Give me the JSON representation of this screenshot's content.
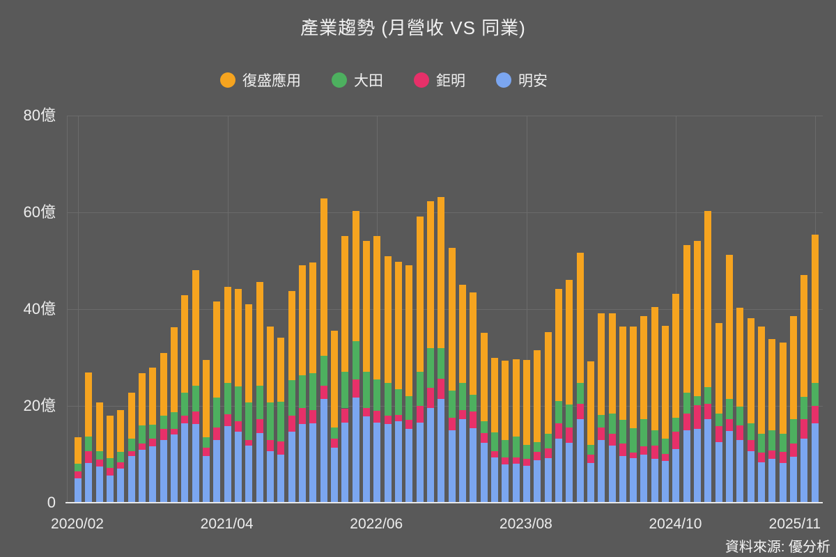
{
  "title": "產業趨勢 (月營收 VS 同業)",
  "source": "資料來源: 優分析",
  "colors": {
    "background": "#595959",
    "grid": "#6B6B6B",
    "axis_line": "#E9E9E9",
    "text": "#F0F0F0",
    "orange": "#F6A41F",
    "green": "#4DB05F",
    "pink": "#E73069",
    "blue": "#7BA6F0"
  },
  "legend": [
    {
      "label": "復盛應用",
      "color": "#F6A41F"
    },
    {
      "label": "大田",
      "color": "#4DB05F"
    },
    {
      "label": "鉅明",
      "color": "#E73069"
    },
    {
      "label": "明安",
      "color": "#7BA6F0"
    }
  ],
  "chart_data": {
    "type": "bar",
    "stacked": true,
    "title": "產業趨勢 (月營收 VS 同業)",
    "unit": "億",
    "ylim": [
      0,
      80
    ],
    "grid": true,
    "legend_position": "top",
    "y_ticks": [
      {
        "value": 0,
        "label": "0"
      },
      {
        "value": 20,
        "label": "20億"
      },
      {
        "value": 40,
        "label": "40億"
      },
      {
        "value": 60,
        "label": "60億"
      },
      {
        "value": 80,
        "label": "80億"
      }
    ],
    "x_tick_indices": [
      0,
      14,
      28,
      42,
      56,
      69
    ],
    "x_tick_labels": [
      "2020/02",
      "2021/04",
      "2022/06",
      "2023/08",
      "2024/10",
      "2025/11"
    ],
    "categories": [
      "2020/02",
      "2020/03",
      "2020/04",
      "2020/05",
      "2020/06",
      "2020/07",
      "2020/08",
      "2020/09",
      "2020/10",
      "2020/11",
      "2020/12",
      "2021/01",
      "2021/02",
      "2021/03",
      "2021/04",
      "2021/05",
      "2021/06",
      "2021/07",
      "2021/08",
      "2021/09",
      "2021/10",
      "2021/11",
      "2021/12",
      "2022/01",
      "2022/02",
      "2022/03",
      "2022/04",
      "2022/05",
      "2022/06",
      "2022/07",
      "2022/08",
      "2022/09",
      "2022/10",
      "2022/11",
      "2022/12",
      "2023/01",
      "2023/02",
      "2023/03",
      "2023/04",
      "2023/05",
      "2023/06",
      "2023/07",
      "2023/08",
      "2023/09",
      "2023/10",
      "2023/11",
      "2023/12",
      "2024/01",
      "2024/02",
      "2024/03",
      "2024/04",
      "2024/05",
      "2024/06",
      "2024/07",
      "2024/08",
      "2024/09",
      "2024/10",
      "2024/11",
      "2024/12",
      "2025/01",
      "2025/02",
      "2025/03",
      "2025/04",
      "2025/05",
      "2025/06",
      "2025/07",
      "2025/08",
      "2025/09",
      "2025/10",
      "2025/11"
    ],
    "series": [
      {
        "name": "明安",
        "color": "#7BA6F0",
        "stack_position": 1,
        "values": [
          5.1,
          8.2,
          7.5,
          5.6,
          7.1,
          9.6,
          11.0,
          11.7,
          13.0,
          14.1,
          16.4,
          16.3,
          9.6,
          12.9,
          15.9,
          14.7,
          11.8,
          14.4,
          10.7,
          10.0,
          14.7,
          16.2,
          16.4,
          21.4,
          11.3,
          16.6,
          21.8,
          17.9,
          16.6,
          16.2,
          16.8,
          15.2,
          16.6,
          19.6,
          21.4,
          14.9,
          17.2,
          15.4,
          12.4,
          9.3,
          7.9,
          8.1,
          7.6,
          8.8,
          9.2,
          13.3,
          12.4,
          17.2,
          8.2,
          12.9,
          11.8,
          9.6,
          9.2,
          9.9,
          9.0,
          8.7,
          11.1,
          14.9,
          15.3,
          17.2,
          12.5,
          14.8,
          13.0,
          10.6,
          8.4,
          9.0,
          8.2,
          9.5,
          13.2,
          16.4
        ]
      },
      {
        "name": "鉅明",
        "color": "#E73069",
        "stack_position": 2,
        "values": [
          1.4,
          2.4,
          1.4,
          1.6,
          1.3,
          1.0,
          1.3,
          1.5,
          2.2,
          1.2,
          1.6,
          2.6,
          1.7,
          2.7,
          2.4,
          2.1,
          1.2,
          2.8,
          2.2,
          2.7,
          3.3,
          3.4,
          2.8,
          2.8,
          2.0,
          2.9,
          3.7,
          1.7,
          2.4,
          1.8,
          1.3,
          1.9,
          3.4,
          4.2,
          4.2,
          2.7,
          1.9,
          3.4,
          2.0,
          1.4,
          1.4,
          1.3,
          1.4,
          1.7,
          2.0,
          3.1,
          3.1,
          3.3,
          1.7,
          2.6,
          2.4,
          2.7,
          1.2,
          1.8,
          2.8,
          1.4,
          3.6,
          3.5,
          4.9,
          3.3,
          3.4,
          2.5,
          3.0,
          2.4,
          2.0,
          1.8,
          2.3,
          2.7,
          4.0,
          3.6
        ]
      },
      {
        "name": "大田",
        "color": "#4DB05F",
        "stack_position": 3,
        "values": [
          1.5,
          3.1,
          1.7,
          2.0,
          2.1,
          2.7,
          3.7,
          2.9,
          2.8,
          3.4,
          4.8,
          5.3,
          2.2,
          6.2,
          6.5,
          7.2,
          7.7,
          7.0,
          7.8,
          8.2,
          7.3,
          6.8,
          7.5,
          6.1,
          2.2,
          7.6,
          7.9,
          7.5,
          6.5,
          6.7,
          5.3,
          4.9,
          7.1,
          8.2,
          6.4,
          5.6,
          5.7,
          3.5,
          2.5,
          3.9,
          3.6,
          4.2,
          3.0,
          2.0,
          3.1,
          4.6,
          4.8,
          4.3,
          2.1,
          2.6,
          4.2,
          4.8,
          5.0,
          5.5,
          3.1,
          3.2,
          2.9,
          4.3,
          1.8,
          3.4,
          2.5,
          4.2,
          3.8,
          3.4,
          3.8,
          4.1,
          3.7,
          5.0,
          4.7,
          4.8
        ]
      },
      {
        "name": "復盛應用",
        "color": "#F6A41F",
        "stack_position": 4,
        "values": [
          5.5,
          13.2,
          10.1,
          8.8,
          8.7,
          9.5,
          10.8,
          11.8,
          13.0,
          17.6,
          20.1,
          23.8,
          16.0,
          19.8,
          19.8,
          20.2,
          20.3,
          21.4,
          15.7,
          13.2,
          18.5,
          22.7,
          23.0,
          32.6,
          20.0,
          28.0,
          26.9,
          27.0,
          29.6,
          26.2,
          26.4,
          27.0,
          32.1,
          30.3,
          31.2,
          29.4,
          20.2,
          21.2,
          18.2,
          15.4,
          16.5,
          16.0,
          17.5,
          19.0,
          21.0,
          23.2,
          25.7,
          26.9,
          17.2,
          21.0,
          20.8,
          19.3,
          21.0,
          21.4,
          25.6,
          23.3,
          25.5,
          30.6,
          32.1,
          36.4,
          18.7,
          29.7,
          20.5,
          21.7,
          22.2,
          18.9,
          18.9,
          21.4,
          25.1,
          30.6
        ]
      }
    ]
  }
}
